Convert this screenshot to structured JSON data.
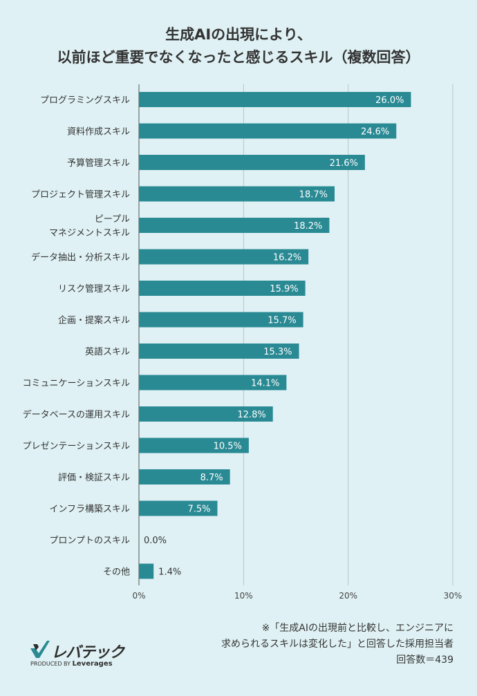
{
  "title_lines": [
    "生成AIの出現により、",
    "以前ほど重要でなくなったと感じるスキル（複数回答）"
  ],
  "chart_data": {
    "type": "bar",
    "orientation": "horizontal",
    "categories": [
      "プログラミングスキル",
      "資料作成スキル",
      "予算管理スキル",
      "プロジェクト管理スキル",
      "ピープル\nマネジメントスキル",
      "データ抽出・分析スキル",
      "リスク管理スキル",
      "企画・提案スキル",
      "英語スキル",
      "コミュニケーションスキル",
      "データベースの運用スキル",
      "プレゼンテーションスキル",
      "評価・検証スキル",
      "インフラ構築スキル",
      "プロンプトのスキル",
      "その他"
    ],
    "values": [
      26.0,
      24.6,
      21.6,
      18.7,
      18.2,
      16.2,
      15.9,
      15.7,
      15.3,
      14.1,
      12.8,
      10.5,
      8.7,
      7.5,
      0.0,
      1.4
    ],
    "value_labels": [
      "26.0%",
      "24.6%",
      "21.6%",
      "18.7%",
      "18.2%",
      "16.2%",
      "15.9%",
      "15.7%",
      "15.3%",
      "14.1%",
      "12.8%",
      "10.5%",
      "8.7%",
      "7.5%",
      "0.0%",
      "1.4%"
    ],
    "xlim": [
      0,
      30
    ],
    "xticks": [
      0,
      10,
      20,
      30
    ],
    "xtick_labels": [
      "0%",
      "10%",
      "20%",
      "30%"
    ],
    "grid": true,
    "bar_color": "#2a8a94",
    "label_color_inside": "#ffffff",
    "label_color_outside": "#333333",
    "grid_color": "#b8c4c6"
  },
  "note_lines": [
    "※「生成AIの出現前と比較し、エンジニアに",
    "求められるスキルは変化した」と回答した採用担当者",
    "回答数＝439"
  ],
  "logo": {
    "name": "レバテック",
    "produced_by": "PRODUCED BY",
    "company": "Leverages",
    "mark_color": "#2a8a94"
  }
}
